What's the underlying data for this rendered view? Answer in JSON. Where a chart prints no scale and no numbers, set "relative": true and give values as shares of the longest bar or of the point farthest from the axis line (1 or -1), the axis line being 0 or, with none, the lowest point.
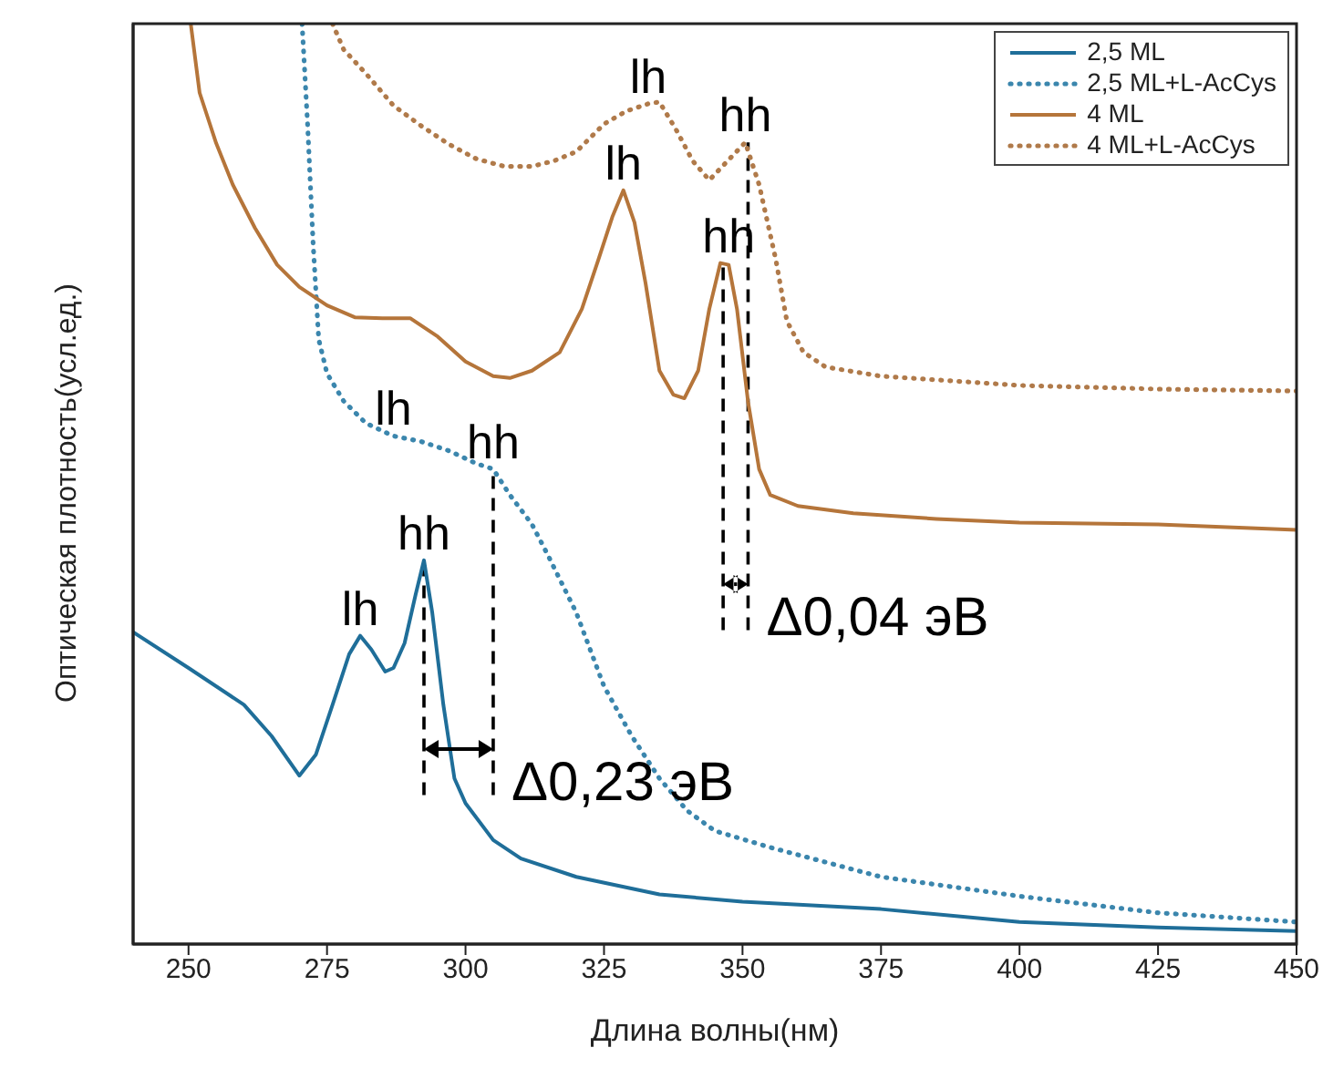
{
  "chart_data": {
    "type": "line",
    "xlabel": "Длина волны(нм)",
    "ylabel": "Оптическая плотность(усл.ед.)",
    "relative": true,
    "xlim": [
      240,
      450
    ],
    "xticks": [
      250,
      275,
      300,
      325,
      350,
      375,
      400,
      425,
      450
    ],
    "legend": "top right",
    "marker": "none",
    "series": [
      {
        "name": "2,5 ML",
        "color": "#1f6e99",
        "line_style": "solid",
        "x": [
          240,
          250,
          260,
          265,
          270,
          273,
          276,
          279,
          281,
          283,
          285.5,
          287,
          289,
          291,
          292.5,
          294,
          296,
          298,
          300,
          305,
          310,
          320,
          335,
          350,
          375,
          400,
          425,
          450
        ],
        "values": [
          0.339,
          0.3,
          0.26,
          0.226,
          0.183,
          0.206,
          0.26,
          0.315,
          0.335,
          0.32,
          0.296,
          0.3,
          0.327,
          0.38,
          0.417,
          0.36,
          0.26,
          0.18,
          0.153,
          0.113,
          0.093,
          0.073,
          0.054,
          0.046,
          0.038,
          0.024,
          0.018,
          0.014
        ]
      },
      {
        "name": "2,5 ML+L-AcCys",
        "color": "#3b86ad",
        "line_style": "dotted",
        "x": [
          270.5,
          271.5,
          272.5,
          273.5,
          275,
          278,
          282,
          287,
          292,
          297,
          302,
          305,
          308,
          312,
          315,
          320,
          325,
          330,
          335,
          340,
          345,
          355,
          375,
          400,
          425,
          450
        ],
        "values": [
          1.0,
          0.89,
          0.76,
          0.657,
          0.62,
          0.59,
          0.566,
          0.552,
          0.546,
          0.536,
          0.522,
          0.516,
          0.488,
          0.456,
          0.421,
          0.36,
          0.28,
          0.226,
          0.18,
          0.145,
          0.123,
          0.105,
          0.073,
          0.052,
          0.034,
          0.024
        ]
      },
      {
        "name": "4 ML",
        "color": "#b5753a",
        "line_style": "solid",
        "x": [
          250.4,
          252,
          255,
          258,
          262,
          266,
          270,
          275,
          280,
          285,
          290,
          295,
          300,
          305,
          308,
          312,
          317,
          321,
          324,
          326.5,
          328.5,
          330.5,
          332.5,
          335,
          337.5,
          339.5,
          342,
          344,
          346,
          347.5,
          349,
          351,
          353,
          355,
          360,
          370,
          385,
          400,
          425,
          450
        ],
        "values": [
          1.0,
          0.925,
          0.87,
          0.825,
          0.778,
          0.738,
          0.714,
          0.694,
          0.681,
          0.68,
          0.68,
          0.66,
          0.633,
          0.617,
          0.615,
          0.623,
          0.643,
          0.69,
          0.744,
          0.79,
          0.819,
          0.784,
          0.718,
          0.623,
          0.597,
          0.593,
          0.623,
          0.69,
          0.74,
          0.738,
          0.69,
          0.589,
          0.516,
          0.488,
          0.476,
          0.468,
          0.462,
          0.458,
          0.456,
          0.45
        ]
      },
      {
        "name": "4 ML+L-AcCys",
        "color": "#b07a4a",
        "line_style": "dotted",
        "x": [
          276,
          278,
          282,
          287,
          292,
          297,
          302,
          307,
          312,
          316,
          320,
          325,
          329,
          333,
          335,
          338,
          341,
          344,
          347,
          350.5,
          353,
          356,
          358,
          361,
          365,
          375,
          400,
          425,
          450
        ],
        "values": [
          1.0,
          0.972,
          0.946,
          0.911,
          0.889,
          0.869,
          0.853,
          0.845,
          0.845,
          0.851,
          0.861,
          0.891,
          0.905,
          0.913,
          0.915,
          0.885,
          0.851,
          0.83,
          0.849,
          0.871,
          0.825,
          0.744,
          0.677,
          0.643,
          0.627,
          0.617,
          0.607,
          0.603,
          0.601
        ]
      }
    ],
    "ref_lines": [
      {
        "axis": "x",
        "value": 292.5,
        "line_style": "dashed",
        "color": "#000000"
      },
      {
        "axis": "x",
        "value": 305,
        "line_style": "dashed",
        "color": "#000000"
      },
      {
        "axis": "x",
        "value": 346.5,
        "line_style": "dashed",
        "color": "#000000"
      },
      {
        "axis": "x",
        "value": 351,
        "line_style": "dashed",
        "color": "#000000"
      }
    ],
    "annotations": [
      {
        "text": "lh",
        "x": 281,
        "y": 0.335
      },
      {
        "text": "hh",
        "x": 292.5,
        "y": 0.417
      },
      {
        "text": "lh",
        "x": 287,
        "y": 0.552
      },
      {
        "text": "hh",
        "x": 305,
        "y": 0.516
      },
      {
        "text": "lh",
        "x": 328.5,
        "y": 0.819
      },
      {
        "text": "hh",
        "x": 347.5,
        "y": 0.74
      },
      {
        "text": "lh",
        "x": 333,
        "y": 0.913
      },
      {
        "text": "hh",
        "x": 350.5,
        "y": 0.871
      },
      {
        "text": "Δ0,23 эВ",
        "x": 305,
        "y": 0.212
      },
      {
        "text": "Δ0,04 эВ",
        "x": 351,
        "y": 0.391
      }
    ]
  }
}
